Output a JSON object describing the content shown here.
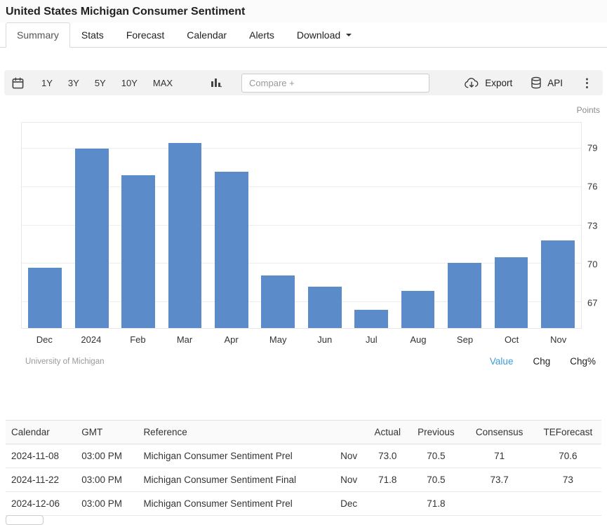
{
  "page": {
    "title": "United States Michigan Consumer Sentiment"
  },
  "tabs": [
    {
      "label": "Summary",
      "active": true,
      "dropdown": false
    },
    {
      "label": "Stats",
      "active": false,
      "dropdown": false
    },
    {
      "label": "Forecast",
      "active": false,
      "dropdown": false
    },
    {
      "label": "Calendar",
      "active": false,
      "dropdown": false
    },
    {
      "label": "Alerts",
      "active": false,
      "dropdown": false
    },
    {
      "label": "Download",
      "active": false,
      "dropdown": true
    }
  ],
  "toolbar": {
    "ranges": [
      "1Y",
      "3Y",
      "5Y",
      "10Y",
      "MAX"
    ],
    "compare_placeholder": "Compare +",
    "export_label": "Export",
    "api_label": "API",
    "icons": [
      "calendar-icon",
      "bar-chart-icon",
      "cloud-download-icon",
      "database-icon",
      "kebab-menu-icon"
    ]
  },
  "chart": {
    "units_label": "Points",
    "source": "University of Michigan",
    "view_tabs": [
      {
        "label": "Value",
        "active": true
      },
      {
        "label": "Chg",
        "active": false
      },
      {
        "label": "Chg%",
        "active": false
      }
    ]
  },
  "chart_data": {
    "type": "bar",
    "title": "United States Michigan Consumer Sentiment",
    "categories": [
      "Dec",
      "2024",
      "Feb",
      "Mar",
      "Apr",
      "May",
      "Jun",
      "Jul",
      "Aug",
      "Sep",
      "Oct",
      "Nov"
    ],
    "values": [
      69.7,
      79.0,
      76.9,
      79.4,
      77.2,
      69.1,
      68.2,
      66.4,
      67.9,
      70.1,
      70.5,
      71.8
    ],
    "ylabel": "Points",
    "yticks": [
      67,
      70,
      73,
      76,
      79
    ],
    "ylim": [
      65,
      81
    ],
    "grid": true,
    "legend": false,
    "bar_color": "#5b8bc9"
  },
  "table": {
    "headers": [
      "Calendar",
      "GMT",
      "Reference",
      "",
      "Actual",
      "Previous",
      "Consensus",
      "TEForecast"
    ],
    "rows": [
      [
        "2024-11-08",
        "03:00 PM",
        "Michigan Consumer Sentiment Prel",
        "Nov",
        "73.0",
        "70.5",
        "71",
        "70.6"
      ],
      [
        "2024-11-22",
        "03:00 PM",
        "Michigan Consumer Sentiment Final",
        "Nov",
        "71.8",
        "70.5",
        "73.7",
        "73"
      ],
      [
        "2024-12-06",
        "03:00 PM",
        "Michigan Consumer Sentiment Prel",
        "Dec",
        "",
        "71.8",
        "",
        ""
      ]
    ]
  },
  "colors": {
    "accent_blue": "#3b9cd9",
    "bar_blue": "#5b8bc9"
  }
}
